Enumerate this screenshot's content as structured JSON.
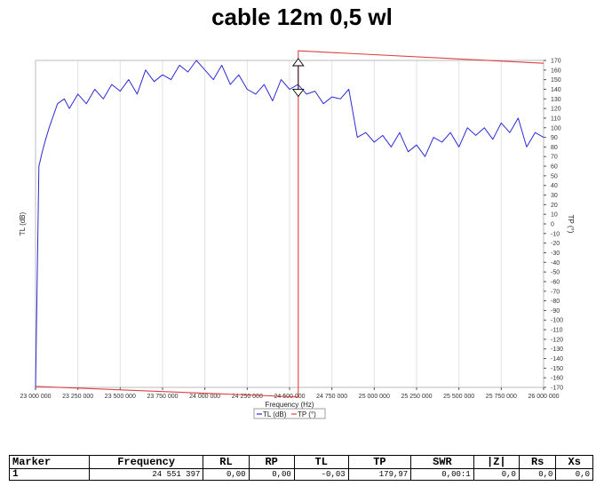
{
  "title": "cable 12m 0,5 wl",
  "chart_data": {
    "type": "line",
    "title": "cable 12m 0,5 wl",
    "xlabel": "Frequency (Hz)",
    "ylabel_left": "TL (dB)",
    "ylabel_right": "TP (°)",
    "xlim": [
      23000000,
      26000000
    ],
    "x_ticks": [
      23000000,
      23250000,
      23500000,
      23750000,
      24000000,
      24250000,
      24500000,
      24750000,
      25000000,
      25250000,
      25500000,
      25750000,
      26000000
    ],
    "x_tick_labels": [
      "23 000 000",
      "23 250 000",
      "23 500 000",
      "23 750 000",
      "24 000 000",
      "24 250 000",
      "24 500 000",
      "24 750 000",
      "25 000 000",
      "25 250 000",
      "25 500 000",
      "25 750 000",
      "26 000 000"
    ],
    "right_ylim": [
      -170,
      170
    ],
    "right_y_tick_step": 10,
    "grid": "vertical",
    "legend": {
      "position": "bottom-center",
      "entries": [
        "TL (dB)",
        "TP (°)"
      ]
    },
    "series": [
      {
        "name": "TL (dB)",
        "color": "#2a2ad6",
        "axis": "right-scale",
        "x": [
          23000000,
          23020000,
          23040000,
          23060000,
          23080000,
          23100000,
          23130000,
          23170000,
          23200000,
          23250000,
          23300000,
          23350000,
          23400000,
          23450000,
          23500000,
          23550000,
          23600000,
          23650000,
          23700000,
          23750000,
          23800000,
          23850000,
          23900000,
          23950000,
          24000000,
          24050000,
          24100000,
          24150000,
          24200000,
          24250000,
          24300000,
          24350000,
          24400000,
          24450000,
          24500000,
          24550000,
          24600000,
          24650000,
          24700000,
          24750000,
          24800000,
          24850000,
          24900000,
          24950000,
          25000000,
          25050000,
          25100000,
          25150000,
          25200000,
          25250000,
          25300000,
          25350000,
          25400000,
          25450000,
          25500000,
          25550000,
          25600000,
          25650000,
          25700000,
          25750000,
          25800000,
          25850000,
          25900000,
          25950000,
          26000000
        ],
        "y": [
          -172,
          60,
          75,
          88,
          100,
          110,
          125,
          130,
          120,
          135,
          125,
          140,
          130,
          145,
          138,
          150,
          135,
          160,
          148,
          155,
          150,
          165,
          158,
          170,
          160,
          150,
          165,
          145,
          155,
          140,
          135,
          145,
          128,
          150,
          140,
          145,
          135,
          138,
          125,
          132,
          130,
          140,
          90,
          95,
          85,
          92,
          80,
          95,
          75,
          82,
          70,
          90,
          85,
          95,
          80,
          100,
          92,
          100,
          88,
          105,
          95,
          110,
          80,
          95,
          90
        ]
      },
      {
        "name": "TP (°)",
        "color": "#e04040",
        "axis": "right",
        "x": [
          23000000,
          24551397,
          24551397,
          26000000
        ],
        "y": [
          -169,
          -179.97,
          179.97,
          167
        ]
      }
    ],
    "annotations": [
      {
        "type": "marker",
        "label": "1",
        "x": 24551397
      }
    ]
  },
  "marker_table": {
    "headers": [
      "Marker",
      "Frequency",
      "RL",
      "RP",
      "TL",
      "TP",
      "SWR",
      "|Z|",
      "Rs",
      "Xs"
    ],
    "rows": [
      [
        "1",
        "24 551 397",
        "0,00",
        "0,00",
        "-0,03",
        "179,97",
        "0,00:1",
        "0,0",
        "0,0",
        "0,0"
      ]
    ]
  }
}
